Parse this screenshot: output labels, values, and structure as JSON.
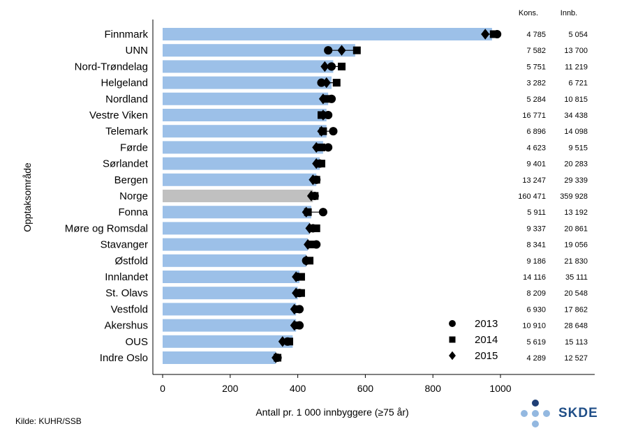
{
  "chart_data": {
    "type": "bar",
    "ylabel": "Opptaksområde",
    "xlabel": "Antall pr. 1 000 innbyggere (≥75 år)",
    "xlim": [
      0,
      1000
    ],
    "xticks": [
      0,
      200,
      400,
      600,
      800,
      1000
    ],
    "column_headers": [
      "Kons.",
      "Innb."
    ],
    "legend": [
      "2013",
      "2014",
      "2015"
    ],
    "legend_position": "bottom-right",
    "categories": [
      "Finnmark",
      "UNN",
      "Nord-Trøndelag",
      "Helgeland",
      "Nordland",
      "Vestre Viken",
      "Telemark",
      "Førde",
      "Sørlandet",
      "Bergen",
      "Norge",
      "Fonna",
      "Møre og Romsdal",
      "Stavanger",
      "Østfold",
      "Innlandet",
      "St. Olavs",
      "Vestfold",
      "Akershus",
      "OUS",
      "Indre Oslo"
    ],
    "highlight": "Norge",
    "values": [
      975,
      570,
      505,
      500,
      490,
      485,
      485,
      475,
      465,
      455,
      445,
      440,
      435,
      430,
      425,
      405,
      400,
      395,
      395,
      385,
      335
    ],
    "series": [
      {
        "name": "2013",
        "marker": "circle",
        "values": [
          990,
          490,
          500,
          470,
          500,
          490,
          505,
          490,
          465,
          455,
          450,
          475,
          445,
          455,
          425,
          400,
          405,
          405,
          405,
          370,
          340
        ]
      },
      {
        "name": "2014",
        "marker": "square",
        "values": [
          980,
          575,
          530,
          515,
          490,
          470,
          475,
          470,
          470,
          455,
          450,
          430,
          455,
          440,
          435,
          410,
          410,
          400,
          400,
          375,
          340
        ]
      },
      {
        "name": "2015",
        "marker": "diamond",
        "values": [
          955,
          530,
          480,
          485,
          475,
          475,
          470,
          455,
          455,
          445,
          440,
          425,
          435,
          430,
          425,
          395,
          395,
          390,
          390,
          355,
          335
        ]
      }
    ],
    "kons": [
      "4 785",
      "7 582",
      "5 751",
      "3 282",
      "5 284",
      "16 771",
      "6 896",
      "4 623",
      "9 401",
      "13 247",
      "160 471",
      "5 911",
      "9 337",
      "8 341",
      "9 186",
      "14 116",
      "8 209",
      "6 930",
      "10 910",
      "5 619",
      "4 289"
    ],
    "innb": [
      "5 054",
      "13 700",
      "11 219",
      "6 721",
      "10 815",
      "34 438",
      "14 098",
      "9 515",
      "20 283",
      "29 339",
      "359 928",
      "13 192",
      "20 861",
      "19 056",
      "21 830",
      "35 111",
      "20 548",
      "17 862",
      "28 648",
      "15 113",
      "12 527"
    ]
  },
  "source": "Kilde: KUHR/SSB",
  "logo_text": "SKDE",
  "colors": {
    "bar": "#9cc0e8",
    "highlight": "#c0c0c0",
    "marker": "#000000"
  }
}
